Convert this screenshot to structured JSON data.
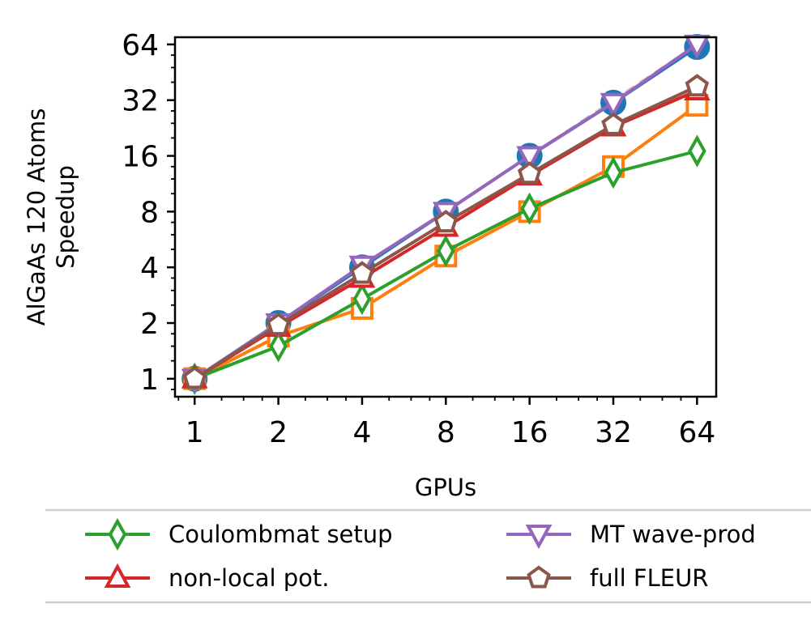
{
  "chart_data": {
    "type": "line",
    "title": "",
    "xlabel": "GPUs",
    "ylabel_lines": [
      "AlGaAs 120 Atoms",
      "Speedup"
    ],
    "x_scale": "log2",
    "y_scale": "log2",
    "x": [
      1,
      2,
      4,
      8,
      16,
      32,
      64
    ],
    "x_ticklabels": [
      "1",
      "2",
      "4",
      "8",
      "16",
      "32",
      "64"
    ],
    "y_ticks": [
      1,
      2,
      4,
      8,
      16,
      32,
      64
    ],
    "y_ticklabels": [
      "1",
      "2",
      "4",
      "8",
      "16",
      "32",
      "64"
    ],
    "xlim": [
      0.85,
      75
    ],
    "ylim": [
      0.8,
      70
    ],
    "grid": false,
    "legend_placement": "below",
    "ideal_line": {
      "style": "dashed",
      "color": "#c8c8c8",
      "values": [
        1,
        2,
        4,
        8,
        16,
        32,
        64
      ]
    },
    "series": [
      {
        "name": "",
        "color": "#1f77b4",
        "marker": "circle",
        "values": [
          1,
          2,
          4,
          8,
          16,
          31,
          62
        ]
      },
      {
        "name": "",
        "color": "#ff7f0e",
        "marker": "square",
        "values": [
          1,
          1.7,
          2.4,
          4.6,
          8,
          14,
          30
        ]
      },
      {
        "name": "Coulombmat setup",
        "color": "#2ca02c",
        "marker": "thin_diamond",
        "values": [
          1,
          1.5,
          2.7,
          4.9,
          8.3,
          13,
          17
        ]
      },
      {
        "name": "non-local pot.",
        "color": "#d62728",
        "marker": "triangle_up",
        "values": [
          1,
          1.9,
          3.5,
          6.6,
          12.5,
          23,
          36
        ]
      },
      {
        "name": "MT wave-prod",
        "color": "#9467bd",
        "marker": "triangle_down",
        "values": [
          1,
          2,
          4.1,
          8,
          16,
          31,
          64
        ]
      },
      {
        "name": "full FLEUR",
        "color": "#8c564b",
        "marker": "pentagon",
        "values": [
          1,
          1.95,
          3.7,
          7,
          12.8,
          23.5,
          38
        ]
      }
    ]
  }
}
